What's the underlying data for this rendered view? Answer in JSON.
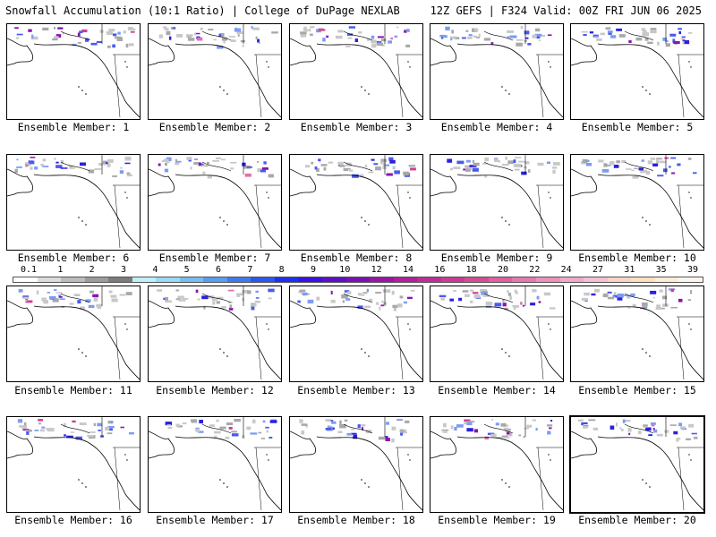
{
  "header": {
    "title": "Snowfall Accumulation (10:1 Ratio) | College of DuPage NEXLAB",
    "run": "12Z GEFS | F324 Valid: 00Z FRI JUN 06 2025"
  },
  "panel_label_prefix": "Ensemble Member: ",
  "members": [
    1,
    2,
    3,
    4,
    5,
    6,
    7,
    8,
    9,
    10,
    11,
    12,
    13,
    14,
    15,
    16,
    17,
    18,
    19,
    20
  ],
  "selected_member": 20,
  "colorbar": {
    "labels": [
      "0.1",
      "1",
      "2",
      "3",
      "4",
      "5",
      "6",
      "7",
      "8",
      "9",
      "10",
      "12",
      "14",
      "16",
      "18",
      "20",
      "22",
      "24",
      "27",
      "31",
      "35",
      "39"
    ],
    "colors": [
      "#ffffff",
      "#dcdcdc",
      "#bcbcbc",
      "#9c9c9c",
      "#7c7c7c",
      "#bfefff",
      "#9ad9f7",
      "#78bdf0",
      "#5a9cf0",
      "#4178f0",
      "#2d55f0",
      "#1e2ff0",
      "#3b10e0",
      "#5a10c8",
      "#7a10b4",
      "#9a14a8",
      "#b0209c",
      "#c02c96",
      "#cc3a92",
      "#d64c94",
      "#e060a0",
      "#e878ae",
      "#ee90bc",
      "#f2a8c8",
      "#f5c0d4",
      "#f8d4c8",
      "#fae0c0",
      "#fcecd8",
      "#fef6ec"
    ]
  }
}
